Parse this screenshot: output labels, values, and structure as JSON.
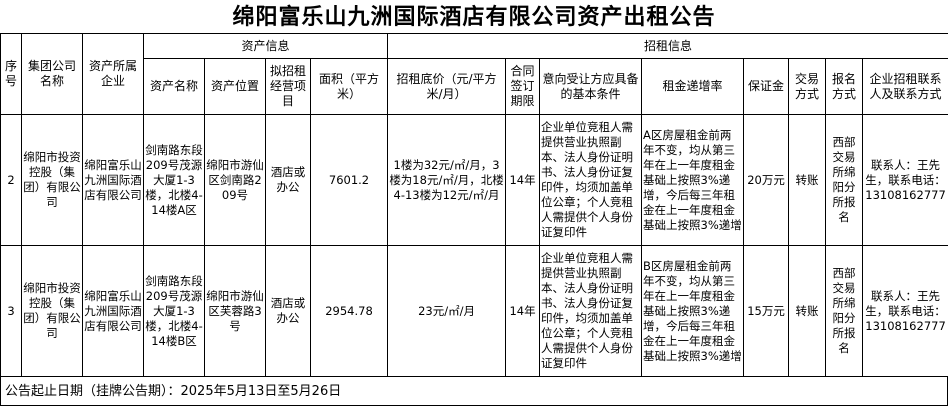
{
  "title": "绵阳富乐山九洲国际酒店有限公司资产出租公告",
  "headers": {
    "seq": "序号",
    "group": "集团公司名称",
    "company": "资产所属企业",
    "asset_info": "资产信息",
    "lease_info": "招租信息",
    "asset_name": "资产名称",
    "location": "资产位置",
    "business": "拟招租经营项目",
    "area": "面积（平方米）",
    "price": "招租底价（元/平方米/月）",
    "term": "合同签订期限",
    "conditions": "意向受让方应具备的基本条件",
    "increase": "租金递增率",
    "deposit": "保证金",
    "trade": "交易方式",
    "signup": "报名方式",
    "contact": "企业招租联系人及联系方式"
  },
  "rows": [
    {
      "seq": "2",
      "group": "绵阳市投资控股（集团）有限公司",
      "company": "绵阳富乐山九洲国际酒店有限公司",
      "asset_name": "剑南路东段209号茂源大厦1-3楼，北楼4-14楼A区",
      "location": "绵阳市游仙区剑南路209号",
      "business": "酒店或办公",
      "area": "7601.2",
      "price": "1楼为32元/㎡/月，3楼为18元/㎡/月，北楼4-13楼为12元/㎡/月",
      "term": "14年",
      "conditions": "企业单位竞租人需提供营业执照副本、法人身份证明书、法人身份证复印件，均须加盖单位公章；个人竞租人需提供个人身份证复印件",
      "increase": "A区房屋租金前两年不变，均从第三年在上一年度租金基础上按照3%递增，今后每三年租金在上一年度租金基础上按照3%递增",
      "deposit": "20万元",
      "trade": "转账",
      "signup": "西部交易所绵阳分所报名",
      "contact": "联系人：王先生，联系电话：13108162777"
    },
    {
      "seq": "3",
      "group": "绵阳市投资控股（集团）有限公司",
      "company": "绵阳富乐山九洲国际酒店有限公司",
      "asset_name": "剑南路东段209号茂源大厦1-3楼，北楼4-14楼B区",
      "location": "绵阳市游仙区芙蓉路3号",
      "business": "酒店或办公",
      "area": "2954.78",
      "price": "23元/㎡/月",
      "term": "14年",
      "conditions": "企业单位竞租人需提供营业执照副本、法人身份证明书、法人身份证复印件，均须加盖单位公章；个人竞租人需提供个人身份证复印件",
      "increase": "B区房屋租金前两年不变，均从第三年在上一年度租金基础上按照3%递增，今后每三年租金在上一年度租金基础上按照3%递增",
      "deposit": "15万元",
      "trade": "转账",
      "signup": "西部交易所绵阳分所报名",
      "contact": "联系人：王先生，联系电话：13108162777"
    }
  ],
  "footer": "公告起止日期（挂牌公告期）：2025年5月13日至5月26日"
}
